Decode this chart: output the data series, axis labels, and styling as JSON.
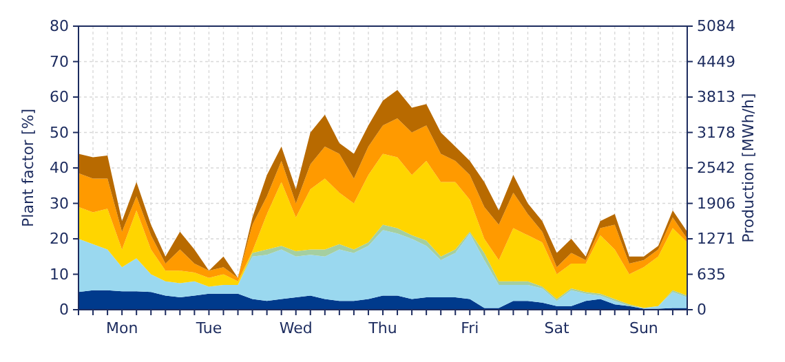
{
  "chart_data": {
    "type": "area",
    "stacked": true,
    "ylabel": "Plant factor [%]",
    "y2label": "Production [MWh/h]",
    "categories": [
      null,
      null,
      null,
      "Mon",
      null,
      null,
      null,
      null,
      null,
      "Tue",
      null,
      null,
      null,
      null,
      null,
      "Wed",
      null,
      null,
      null,
      null,
      null,
      "Thu",
      null,
      null,
      null,
      null,
      null,
      "Fri",
      null,
      null,
      null,
      null,
      null,
      "Sat",
      null,
      null,
      null,
      null,
      null,
      "Sun",
      null,
      null,
      null
    ],
    "ylim": [
      0,
      80
    ],
    "yticks": [
      0,
      10,
      20,
      30,
      40,
      50,
      60,
      70,
      80
    ],
    "y2lim": [
      0,
      5084
    ],
    "y2ticks": [
      0,
      635,
      1271,
      1906,
      2542,
      3178,
      3813,
      4449,
      5084
    ],
    "grid": true,
    "series": [
      {
        "color": "#003a8c",
        "values": [
          5,
          5.5,
          5.5,
          5.2,
          5.2,
          5,
          4,
          3.5,
          4,
          4.5,
          4.5,
          4.5,
          3,
          2.5,
          3,
          3.5,
          4,
          3,
          2.5,
          2.5,
          3,
          4,
          4,
          3,
          3.5,
          3.5,
          3.5,
          3,
          0.5,
          0.5,
          2.5,
          2.5,
          2,
          1,
          1,
          2.5,
          3,
          1.5,
          1,
          0.3,
          0.3,
          0.5,
          0.5
        ]
      },
      {
        "color": "#9ad8ef",
        "values": [
          15,
          13,
          11.5,
          6.8,
          9.3,
          5,
          4,
          4,
          4,
          2,
          2.5,
          2.5,
          12,
          13,
          14,
          11.5,
          11.5,
          12,
          14.5,
          13.5,
          15,
          18.5,
          17.5,
          17,
          14.5,
          10.5,
          12.5,
          18.5,
          13.5,
          6.5,
          4.5,
          4.5,
          4,
          1.5,
          4.5,
          2,
          1,
          1,
          0,
          0.2,
          0.7,
          4.5,
          3
        ]
      },
      {
        "color": "#a5cfa0",
        "values": [
          0,
          0,
          0,
          0,
          0,
          0,
          0,
          0,
          0,
          0,
          0,
          0,
          1,
          1.5,
          1,
          1.5,
          1.5,
          2,
          1.5,
          1,
          1,
          1.5,
          1.5,
          1,
          1.5,
          1,
          1,
          0.5,
          2,
          1,
          1,
          1,
          0.5,
          0.5,
          0.5,
          0.5,
          0.5,
          0.5,
          0.5,
          0,
          0,
          0.5,
          0.5
        ]
      },
      {
        "color": "#ffd500",
        "values": [
          9,
          9,
          11.5,
          5,
          13.5,
          7,
          3,
          3.5,
          2.5,
          2.5,
          3,
          1,
          0.5,
          10,
          18,
          9.5,
          17,
          20,
          14.5,
          13,
          19,
          20,
          20,
          17,
          22.5,
          21,
          19,
          9,
          4,
          6,
          15,
          13,
          12.5,
          7,
          7,
          8,
          16.5,
          14,
          8.5,
          11.5,
          14,
          17.5,
          15
        ]
      },
      {
        "color": "#ff9a00",
        "values": [
          9.5,
          9.5,
          8.5,
          5,
          4,
          4,
          2,
          6,
          2.5,
          2,
          2,
          1,
          7.5,
          5,
          6,
          4,
          7,
          9,
          11,
          7,
          8,
          8,
          11,
          12,
          10,
          8,
          6,
          7,
          9,
          10,
          10,
          6,
          3,
          2,
          3,
          1,
          2,
          7,
          3,
          2,
          2,
          3,
          1
        ]
      },
      {
        "color": "#b86a00",
        "values": [
          5.5,
          6,
          6.5,
          3,
          4,
          3,
          2,
          5,
          4,
          0,
          3,
          0,
          2,
          6,
          4,
          4,
          9,
          9,
          3,
          7,
          6,
          7,
          8,
          7,
          6,
          6,
          4,
          4,
          7,
          4,
          5,
          3,
          3,
          4,
          4,
          1,
          2,
          3,
          2,
          1,
          1,
          2,
          2
        ]
      }
    ]
  }
}
